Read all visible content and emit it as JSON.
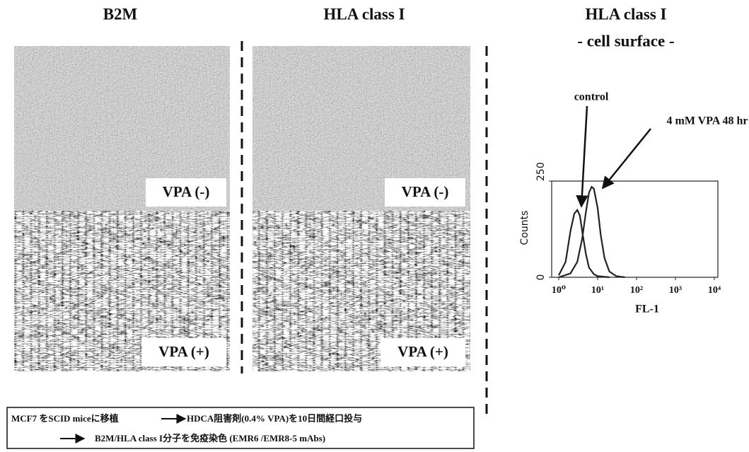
{
  "panels": {
    "columns": [
      {
        "title": "B2M"
      },
      {
        "title": "HLA class I"
      }
    ],
    "labels": [
      "VPA (-)",
      "VPA (+)"
    ]
  },
  "histogram_title": [
    "HLA class I",
    "- cell surface -"
  ],
  "chart_data": {
    "type": "line",
    "ylabel": "Counts",
    "xlabel": "FL-1",
    "xscale": "log",
    "xlim": [
      1,
      10000
    ],
    "xticks": [
      {
        "value": 1,
        "label": "10⁰"
      },
      {
        "value": 10,
        "label": "10¹"
      },
      {
        "value": 100,
        "label": "10²"
      },
      {
        "value": 1000,
        "label": "10³"
      },
      {
        "value": 10000,
        "label": "10⁴"
      }
    ],
    "ylim": [
      0,
      250
    ],
    "yticks": [
      0,
      250
    ],
    "series": [
      {
        "name": "control",
        "color": "#222222",
        "x": [
          1,
          1.5,
          2,
          2.5,
          3,
          3.5,
          4,
          5,
          6,
          8,
          10,
          20
        ],
        "values": [
          5,
          40,
          120,
          165,
          175,
          160,
          120,
          60,
          25,
          8,
          3,
          0
        ]
      },
      {
        "name": "4 mM VPA 48 hr",
        "color": "#222222",
        "x": [
          1,
          2,
          3,
          4,
          5,
          6,
          7,
          8,
          10,
          12,
          15,
          20,
          30,
          50
        ],
        "values": [
          0,
          10,
          40,
          100,
          170,
          220,
          235,
          230,
          180,
          110,
          50,
          15,
          3,
          0
        ]
      }
    ]
  },
  "protocol": {
    "line1": [
      "MCF7 をSCID miceに移植",
      "HDCA阻害剤(0.4% VPA)を10日間経口投与"
    ],
    "line2": "B2M/HLA class I分子を免疫染色 (EMR6 /EMR8-5 mAbs)"
  }
}
